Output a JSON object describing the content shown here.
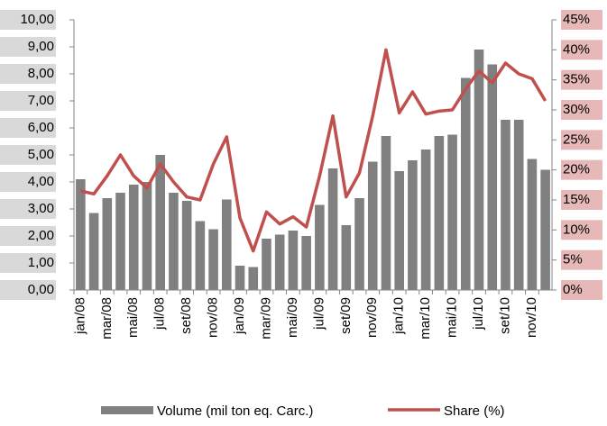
{
  "chart_data": {
    "type": "combo",
    "categories": [
      "jan/08",
      null,
      "mar/08",
      null,
      "mai/08",
      null,
      "jul/08",
      null,
      "set/08",
      null,
      "nov/08",
      null,
      "jan/09",
      null,
      "mar/09",
      null,
      "mai/09",
      null,
      "jul/09",
      null,
      "set/09",
      null,
      "nov/09",
      null,
      "jan/10",
      null,
      "mar/10",
      null,
      "mai/10",
      null,
      "jul/10",
      null,
      "set/10",
      null,
      "nov/10",
      null
    ],
    "series": [
      {
        "name": "Volume (mil ton eq. Carc.)",
        "type": "bar",
        "color": "#808080",
        "values": [
          4.1,
          2.85,
          3.4,
          3.6,
          3.9,
          4.0,
          5.0,
          3.6,
          3.3,
          2.55,
          2.25,
          3.35,
          0.9,
          0.85,
          1.9,
          2.05,
          2.2,
          2.0,
          3.15,
          4.5,
          2.4,
          3.4,
          4.75,
          5.7,
          4.4,
          4.8,
          5.2,
          5.7,
          5.75,
          7.85,
          8.9,
          8.35,
          6.3,
          6.3,
          4.85,
          4.45
        ]
      },
      {
        "name": "Share (%)",
        "type": "line",
        "axis": "y2",
        "color": "#c0504d",
        "values": [
          16.5,
          16,
          19,
          22.5,
          19,
          17,
          21,
          18,
          15.5,
          15,
          21,
          25.5,
          12,
          6.5,
          13,
          11,
          12.2,
          10.5,
          19,
          29,
          15.5,
          19.5,
          29,
          40,
          29.5,
          33,
          29.3,
          29.8,
          30,
          33.5,
          36.5,
          34.5,
          37.8,
          36,
          35.2,
          31.5
        ]
      }
    ],
    "ylim": [
      0,
      10
    ],
    "yticks": [
      {
        "value": 0,
        "label": "0,00"
      },
      {
        "value": 1,
        "label": "1,00"
      },
      {
        "value": 2,
        "label": "2,00"
      },
      {
        "value": 3,
        "label": "3,00"
      },
      {
        "value": 4,
        "label": "4,00"
      },
      {
        "value": 5,
        "label": "5,00"
      },
      {
        "value": 6,
        "label": "6,00"
      },
      {
        "value": 7,
        "label": "7,00"
      },
      {
        "value": 8,
        "label": "8,00"
      },
      {
        "value": 9,
        "label": "9,00"
      },
      {
        "value": 10,
        "label": "10,00"
      }
    ],
    "y2lim": [
      0,
      45
    ],
    "y2ticks": [
      {
        "value": 0,
        "label": "0%"
      },
      {
        "value": 5,
        "label": "5%"
      },
      {
        "value": 10,
        "label": "10%"
      },
      {
        "value": 15,
        "label": "15%"
      },
      {
        "value": 20,
        "label": "20%"
      },
      {
        "value": 25,
        "label": "25%"
      },
      {
        "value": 30,
        "label": "30%"
      },
      {
        "value": 35,
        "label": "35%"
      },
      {
        "value": 40,
        "label": "40%"
      },
      {
        "value": 45,
        "label": "45%"
      }
    ],
    "legend": "bottom"
  }
}
